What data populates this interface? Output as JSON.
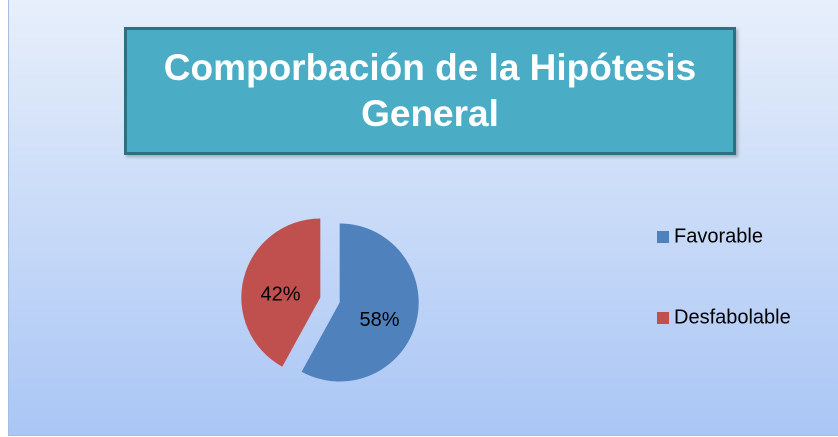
{
  "chart_data": {
    "type": "pie",
    "title": "Comporbación de la Hipótesis General",
    "categories": [
      "Favorable",
      "Desfabolable"
    ],
    "values": [
      58,
      42
    ],
    "value_labels": [
      "58%",
      "42%"
    ],
    "colors": [
      "#4f81bd",
      "#c0504d"
    ],
    "legend": "right"
  }
}
